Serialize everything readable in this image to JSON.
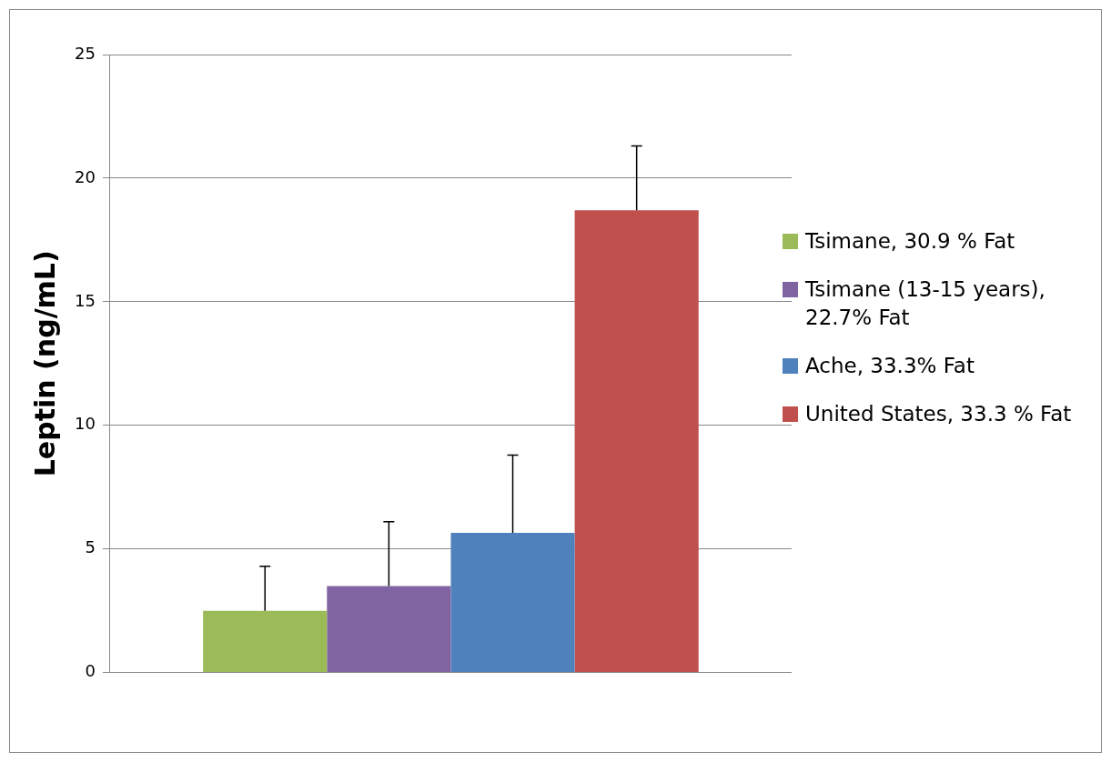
{
  "chart_data": {
    "type": "bar",
    "ylabel": "Leptin (ng/mL)",
    "categories": [
      null
    ],
    "series": [
      {
        "name": "Tsimane, 30.9 % Fat",
        "color": "#9bbb59",
        "values": [
          2.5
        ],
        "errors": [
          [
            2.5,
            4.3
          ]
        ]
      },
      {
        "name": "Tsimane (13-15 years), 22.7% Fat",
        "color": "#8064a2",
        "values": [
          3.5
        ],
        "errors": [
          [
            3.5,
            6.1
          ]
        ]
      },
      {
        "name": "Ache, 33.3% Fat",
        "color": "#4f81bd",
        "values": [
          5.65
        ],
        "errors": [
          [
            5.65,
            8.8
          ]
        ]
      },
      {
        "name": "United States, 33.3 % Fat",
        "color": "#c0504d",
        "values": [
          18.7
        ],
        "errors": [
          [
            18.7,
            21.3
          ]
        ]
      }
    ],
    "ylim": [
      0,
      25
    ],
    "yticks": [
      0,
      5,
      10,
      15,
      20,
      25
    ],
    "grid": "y",
    "legend": "right"
  }
}
